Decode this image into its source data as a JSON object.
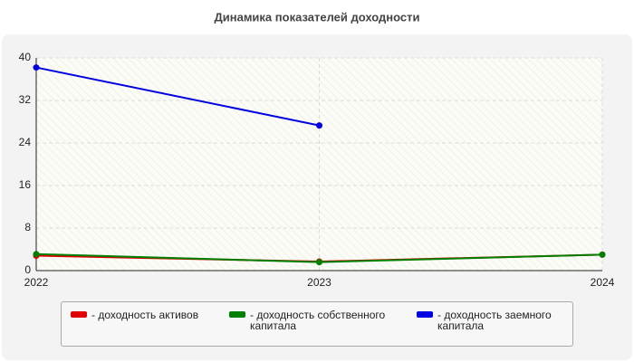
{
  "chart_data": {
    "type": "line",
    "title": "Динамика показателей доходности",
    "x": [
      2022,
      2023,
      2024
    ],
    "xlim": [
      2022,
      2024
    ],
    "xticks": [
      2022,
      2023,
      2024
    ],
    "ylim": [
      0,
      40
    ],
    "yticks": [
      0,
      8,
      16,
      24,
      32,
      40
    ],
    "grid": true,
    "series": [
      {
        "name": "- доходность активов",
        "color": "#e00000",
        "values": [
          2.8,
          1.7,
          3.0
        ]
      },
      {
        "name": "- доходность собственного капитала",
        "color": "#008000",
        "values": [
          3.1,
          1.6,
          3.0
        ]
      },
      {
        "name": "- доходность заемного капитала",
        "color": "#0000e0",
        "values": [
          38.2,
          27.3,
          null
        ]
      }
    ]
  }
}
